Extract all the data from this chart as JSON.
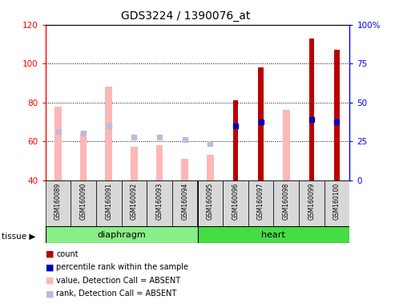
{
  "title": "GDS3224 / 1390076_at",
  "samples": [
    "GSM160089",
    "GSM160090",
    "GSM160091",
    "GSM160092",
    "GSM160093",
    "GSM160094",
    "GSM160095",
    "GSM160096",
    "GSM160097",
    "GSM160098",
    "GSM160099",
    "GSM160100"
  ],
  "pink_values": [
    78,
    64,
    88,
    57,
    58,
    51,
    53,
    null,
    null,
    76,
    null,
    null
  ],
  "lavender_ranks_left": [
    65,
    64,
    68,
    62,
    62,
    61,
    59,
    null,
    null,
    null,
    null,
    null
  ],
  "red_counts": [
    null,
    null,
    null,
    null,
    null,
    null,
    null,
    81,
    98,
    null,
    113,
    107
  ],
  "blue_ranks_left": [
    65,
    64,
    68,
    62,
    62,
    61,
    59,
    68,
    70,
    null,
    71,
    70
  ],
  "blue_present": [
    false,
    false,
    false,
    false,
    false,
    false,
    false,
    true,
    true,
    false,
    true,
    true
  ],
  "lavender_present": [
    true,
    true,
    true,
    true,
    true,
    true,
    true,
    false,
    false,
    false,
    false,
    false
  ],
  "ylim_left": [
    40,
    120
  ],
  "ylim_right": [
    0,
    100
  ],
  "yticks_left": [
    40,
    60,
    80,
    100,
    120
  ],
  "yticks_right": [
    0,
    25,
    50,
    75,
    100
  ],
  "yticklabels_right": [
    "0",
    "25",
    "50",
    "75",
    "100%"
  ],
  "color_pink": "#FFB6B6",
  "color_lavender": "#BBBBDD",
  "color_red": "#BB0000",
  "color_blue": "#0000BB",
  "bg_group": "#D8D8D8",
  "diaphragm_color": "#88EE88",
  "heart_color": "#44DD44",
  "n_diaphragm": 6,
  "n_heart": 6
}
